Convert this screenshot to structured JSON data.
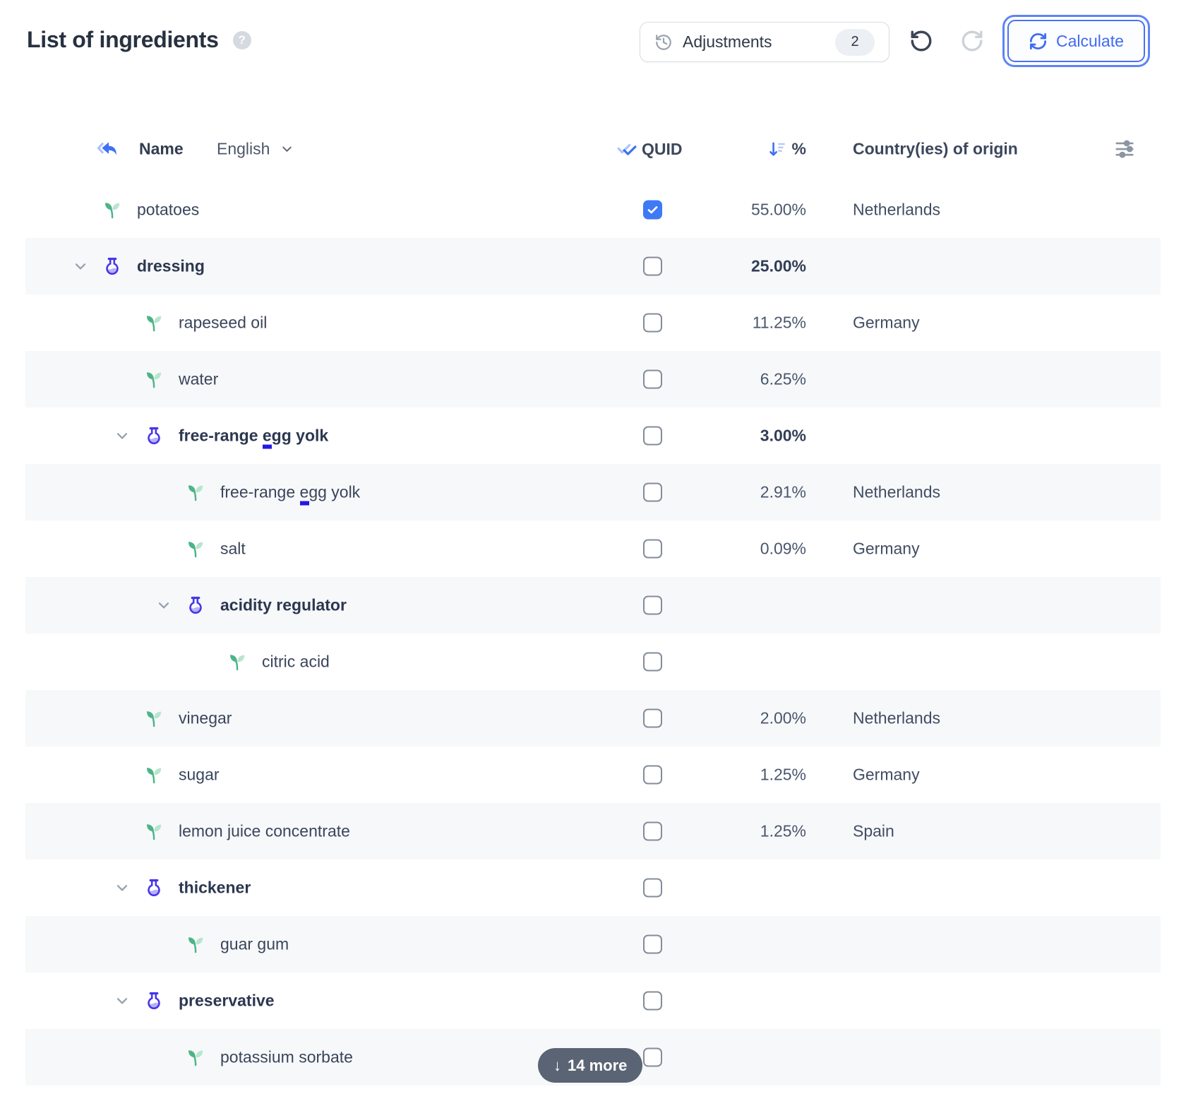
{
  "page": {
    "title": "List of ingredients"
  },
  "toolbar": {
    "adjustments_label": "Adjustments",
    "adjustments_count": "2",
    "calculate_label": "Calculate"
  },
  "table": {
    "header": {
      "name_label": "Name",
      "language": "English",
      "quid_label": "QUID",
      "percent_label": "%",
      "origin_label": "Country(ies) of origin"
    },
    "rows": [
      {
        "name": "potatoes",
        "kind": "ingredient",
        "level": 0,
        "expanded": false,
        "quid_checked": true,
        "percent": "55.00%",
        "origin": "Netherlands"
      },
      {
        "name": "dressing",
        "kind": "compound",
        "level": 0,
        "expanded": true,
        "quid_checked": false,
        "percent": "25.00%",
        "origin": ""
      },
      {
        "name": "rapeseed oil",
        "kind": "ingredient",
        "level": 1,
        "expanded": false,
        "quid_checked": false,
        "percent": "11.25%",
        "origin": "Germany"
      },
      {
        "name": "water",
        "kind": "ingredient",
        "level": 1,
        "expanded": false,
        "quid_checked": false,
        "percent": "6.25%",
        "origin": ""
      },
      {
        "name": "free-range egg yolk",
        "kind": "compound",
        "level": 1,
        "expanded": true,
        "quid_checked": false,
        "percent": "3.00%",
        "origin": "",
        "allergen": "egg"
      },
      {
        "name": "free-range egg yolk",
        "kind": "ingredient",
        "level": 2,
        "expanded": false,
        "quid_checked": false,
        "percent": "2.91%",
        "origin": "Netherlands",
        "allergen": "egg"
      },
      {
        "name": "salt",
        "kind": "ingredient",
        "level": 2,
        "expanded": false,
        "quid_checked": false,
        "percent": "0.09%",
        "origin": "Germany"
      },
      {
        "name": "acidity regulator",
        "kind": "compound",
        "level": 2,
        "expanded": true,
        "quid_checked": false,
        "percent": "",
        "origin": ""
      },
      {
        "name": "citric acid",
        "kind": "ingredient",
        "level": 3,
        "expanded": false,
        "quid_checked": false,
        "percent": "",
        "origin": ""
      },
      {
        "name": "vinegar",
        "kind": "ingredient",
        "level": 1,
        "expanded": false,
        "quid_checked": false,
        "percent": "2.00%",
        "origin": "Netherlands"
      },
      {
        "name": "sugar",
        "kind": "ingredient",
        "level": 1,
        "expanded": false,
        "quid_checked": false,
        "percent": "1.25%",
        "origin": "Germany"
      },
      {
        "name": "lemon juice concentrate",
        "kind": "ingredient",
        "level": 1,
        "expanded": false,
        "quid_checked": false,
        "percent": "1.25%",
        "origin": "Spain"
      },
      {
        "name": "thickener",
        "kind": "compound",
        "level": 1,
        "expanded": true,
        "quid_checked": false,
        "percent": "",
        "origin": ""
      },
      {
        "name": "guar gum",
        "kind": "ingredient",
        "level": 2,
        "expanded": false,
        "quid_checked": false,
        "percent": "",
        "origin": ""
      },
      {
        "name": "preservative",
        "kind": "compound",
        "level": 1,
        "expanded": true,
        "quid_checked": false,
        "percent": "",
        "origin": ""
      },
      {
        "name": "potassium sorbate",
        "kind": "ingredient",
        "level": 2,
        "expanded": false,
        "quid_checked": false,
        "percent": "",
        "origin": ""
      }
    ],
    "more_label": "14 more",
    "more_arrow": "↓"
  },
  "icons": {
    "help_glyph": "?",
    "title_help": "help-circle-icon",
    "adjustments": "history-icon",
    "undo": "undo-icon",
    "redo": "redo-icon",
    "calculate": "refresh-icon",
    "name_header": "revert-translation-icon",
    "quid_header": "double-check-icon",
    "percent_header": "sort-descending-icon",
    "columns": "sliders-icon",
    "ingredient": "leaf-sprout-icon",
    "compound": "flask-icon",
    "expanded_row": "chevron-down-icon"
  },
  "colors": {
    "accent_blue": "#3e72f3",
    "accent_blue_light": "#abc4f9",
    "flask_indigo": "#4636e8",
    "flask_liquid": "#b6b0f8",
    "leaf_green": "#4cb487",
    "leaf_green_light": "#b9e5ce",
    "checked_checkbox": "#3e79f6",
    "pill_bg": "#5b6474",
    "allergen_mark": "#2317e6",
    "row_alt_bg": "#f7f8fa",
    "text_dark": "#2c3750"
  }
}
